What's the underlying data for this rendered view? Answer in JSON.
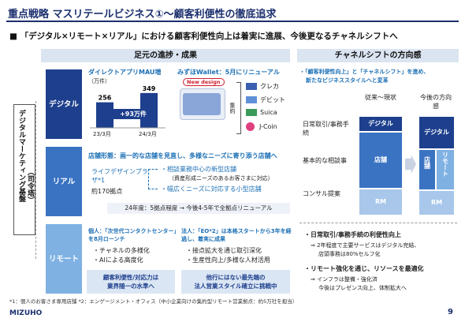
{
  "title": "重点戦略 マスリテールビジネス①～顧客利便性の徹底追求",
  "subtitle": "■ 「デジタル×リモート×リアル」における顧客利便性向上は着実に進展、今後更なるチャネルシフトへ",
  "left_header": "足元の進捗・成果",
  "right_header": "チャネルシフトの方向感",
  "vertical_label": "デジタルマーケティング基盤",
  "vertical_sub": "（司令塔）",
  "rows": {
    "digital": "デジタル",
    "real": "リアル",
    "remote": "リモート"
  },
  "mau": {
    "title": "ダイレクトアプリMAU増",
    "unit": "（万件）",
    "v1": "256",
    "v2": "349",
    "x1": "23/3月",
    "x2": "24/3月",
    "delta": "+93万件"
  },
  "wallet": {
    "title": "みずほWallet：5月にリニューアル",
    "new": "New design",
    "side": "集約",
    "items": [
      "クレカ",
      "デビット",
      "Suica",
      "J-Coin"
    ]
  },
  "real": {
    "title": "店舗形態：画一的な店舗を見直し、多様なニーズに寄り添う店舗へ",
    "lifedesign": "ライフデザインプラザ*1",
    "count": "約170拠点",
    "b1": "相談業務中心の新型店舗",
    "b1s": "（資産形成ニーズのあるお客さまに対応）",
    "b2": "幅広くニーズに対応する小型店舗",
    "timeline": "24年度：5拠点程度 → 今後4-5年で全拠点リニューアル"
  },
  "remote": {
    "personal_title": "個人：「次世代コンタクトセンター」を8月ローンチ",
    "p1": "・チャネルの多様化",
    "p2": "・AIによる高度化",
    "corp_title": "法人：「EO*2」は本格スタートから3年を経過し、着実に成果",
    "c1": "・接点拡大を通じ取引深化",
    "c2": "・生産性向上/多様な人材活用",
    "res1a": "顧客利便性/対応力は",
    "res1b": "業界随一の水準へ",
    "res2a": "他行にはない最先端の",
    "res2b": "法人営業スタイル確立に挑戦中"
  },
  "shift": {
    "intro1": "・「顧客利便性向上」と「チャネルシフト」を進め、",
    "intro2": "新たなビジネススタイルへと変革",
    "now": "従来～現状",
    "future": "今後の方向感",
    "cat1": "日常取引/事務手続",
    "cat2": "基本的な相談事",
    "cat3": "コンサル提案",
    "digital": "デジタル",
    "store": "店舗",
    "remote": "リモート",
    "rm": "RM"
  },
  "bullets": {
    "b1": "・日常取引/事務手続の利便性向上",
    "b1s1": "⇒ 2年程度で主要サービスはデジタル完結、",
    "b1s2": "店頭事務は80%セルフ化",
    "b2": "・リモート強化を通じ、リソースを最適化",
    "b2s1": "⇒ インフラは整備・強化済",
    "b2s2": "今後はプレゼンス向上、体制拡大へ"
  },
  "footer": "*1：個人のお客さま専用店舗 *2：エンゲージメント・オフィス（中小企業向けの集約型リモート営業拠点：約5万社を担当）",
  "logo": "MIZUHO",
  "page": "9",
  "chart_data": {
    "type": "bar",
    "categories": [
      "23/3月",
      "24/3月"
    ],
    "values": [
      256,
      349
    ],
    "title": "ダイレクトアプリMAU増",
    "ylabel": "（万件）"
  }
}
